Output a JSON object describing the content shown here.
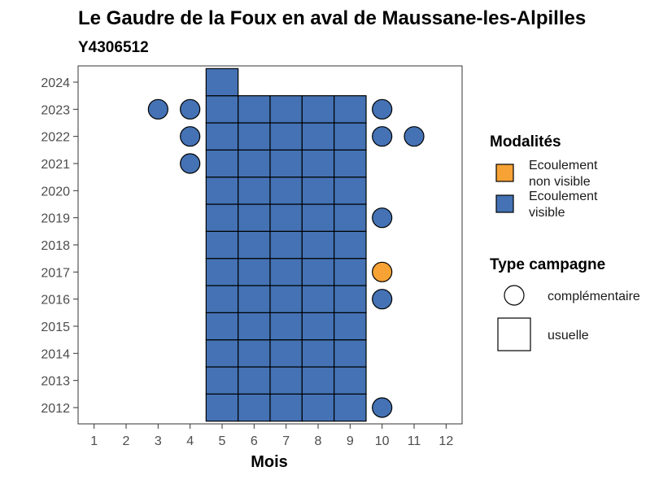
{
  "chart_data": {
    "type": "scatter",
    "title": "Le Gaudre de la Foux en aval de Maussane-les-Alpilles",
    "subtitle": "Y4306512",
    "xlabel": "Mois",
    "ylabel": "",
    "x_ticks": [
      1,
      2,
      3,
      4,
      5,
      6,
      7,
      8,
      9,
      10,
      11,
      12
    ],
    "y_ticks": [
      2012,
      2013,
      2014,
      2015,
      2016,
      2017,
      2018,
      2019,
      2020,
      2021,
      2022,
      2023,
      2024
    ],
    "xlim": [
      0.5,
      12.5
    ],
    "ylim": [
      2011.4,
      2024.6
    ],
    "grid": false,
    "legend_position": "right",
    "colors": {
      "Ecoulement non visible": "#F7A234",
      "Ecoulement visible": "#4472B4"
    },
    "legends": {
      "modalites": {
        "title": "Modalités",
        "items": [
          {
            "label_lines": [
              "Ecoulement",
              "non visible"
            ],
            "color": "#F7A234"
          },
          {
            "label_lines": [
              "Ecoulement",
              "visible"
            ],
            "color": "#4472B4"
          }
        ]
      },
      "campagne": {
        "title": "Type campagne",
        "items": [
          {
            "label": "complémentaire",
            "shape": "circle"
          },
          {
            "label": "usuelle",
            "shape": "square"
          }
        ]
      }
    },
    "usuelle": [
      {
        "month": 5,
        "years": [
          2012,
          2013,
          2014,
          2015,
          2016,
          2017,
          2018,
          2019,
          2020,
          2021,
          2022,
          2023,
          2024
        ],
        "modalite": "Ecoulement visible"
      },
      {
        "month": 6,
        "years": [
          2012,
          2013,
          2014,
          2015,
          2016,
          2017,
          2018,
          2019,
          2020,
          2021,
          2022,
          2023
        ],
        "modalite": "Ecoulement visible"
      },
      {
        "month": 7,
        "years": [
          2012,
          2013,
          2014,
          2015,
          2016,
          2017,
          2018,
          2019,
          2020,
          2021,
          2022,
          2023
        ],
        "modalite": "Ecoulement visible"
      },
      {
        "month": 8,
        "years": [
          2012,
          2013,
          2014,
          2015,
          2016,
          2017,
          2018,
          2019,
          2020,
          2021,
          2022,
          2023
        ],
        "modalite": "Ecoulement visible"
      },
      {
        "month": 9,
        "years": [
          2012,
          2013,
          2014,
          2015,
          2016,
          2017,
          2018,
          2019,
          2020,
          2021,
          2022,
          2023
        ],
        "modalite": "Ecoulement visible"
      }
    ],
    "complementaire": [
      {
        "month": 3,
        "year": 2023,
        "modalite": "Ecoulement visible"
      },
      {
        "month": 4,
        "year": 2023,
        "modalite": "Ecoulement visible"
      },
      {
        "month": 4,
        "year": 2022,
        "modalite": "Ecoulement visible"
      },
      {
        "month": 4,
        "year": 2021,
        "modalite": "Ecoulement visible"
      },
      {
        "month": 10,
        "year": 2023,
        "modalite": "Ecoulement visible"
      },
      {
        "month": 10,
        "year": 2022,
        "modalite": "Ecoulement visible"
      },
      {
        "month": 11,
        "year": 2022,
        "modalite": "Ecoulement visible"
      },
      {
        "month": 10,
        "year": 2019,
        "modalite": "Ecoulement visible"
      },
      {
        "month": 10,
        "year": 2017,
        "modalite": "Ecoulement non visible"
      },
      {
        "month": 10,
        "year": 2016,
        "modalite": "Ecoulement visible"
      },
      {
        "month": 10,
        "year": 2012,
        "modalite": "Ecoulement visible"
      }
    ]
  }
}
